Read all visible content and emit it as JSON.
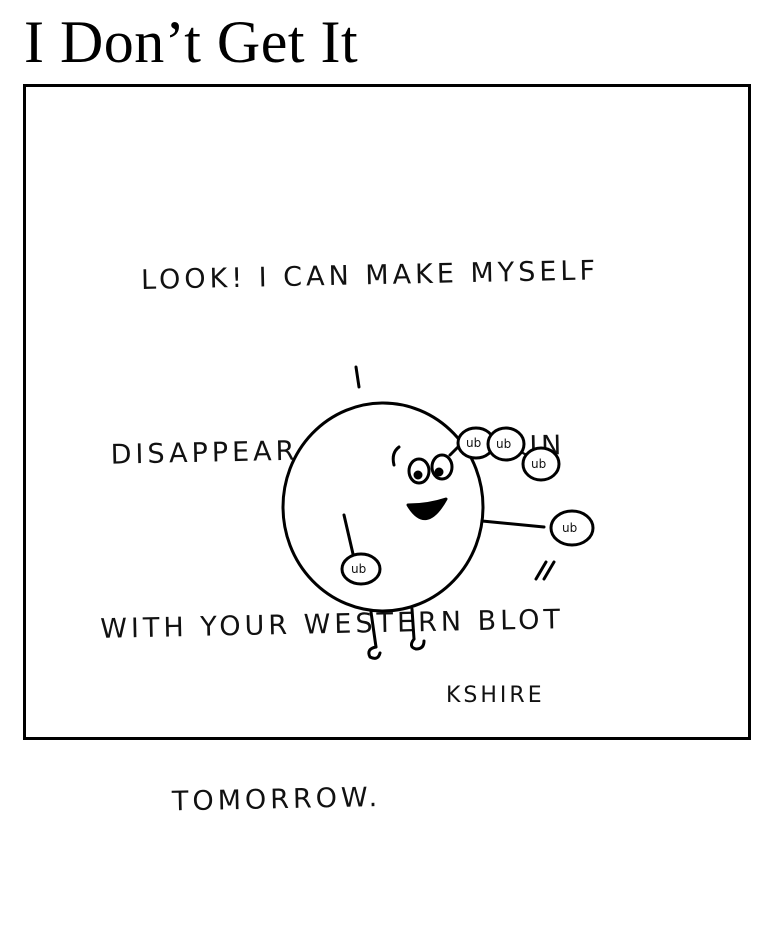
{
  "comic": {
    "title": "I Don’t Get It",
    "speech_lines": [
      "LOOK! I CAN MAKE MYSELF",
      "DISAPPEAR. HA! HAVE FUN",
      "WITH YOUR WESTERN BLOT",
      "TOMORROW."
    ],
    "signature": "KSHIRE",
    "ub_label": "ub"
  }
}
